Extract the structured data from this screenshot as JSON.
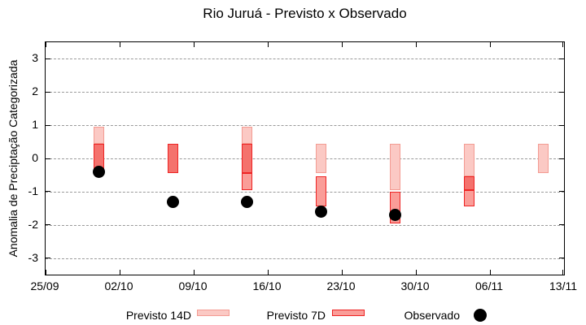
{
  "title": "Rio Juruá - Previsto x Observado",
  "y_axis": {
    "label": "Anomalia de Preciptação Categorizada",
    "tick_labels": [
      "3",
      "2",
      "1",
      "0",
      "-1",
      "-2",
      "-3"
    ],
    "tick_values": [
      3,
      2,
      1,
      0,
      -1,
      -2,
      -3
    ],
    "range": [
      -3.5,
      3.5
    ],
    "grid": "horizontal dashed"
  },
  "x_axis": {
    "tick_labels": [
      "25/09",
      "02/10",
      "09/10",
      "16/10",
      "23/10",
      "30/10",
      "06/11",
      "13/11"
    ]
  },
  "legend": {
    "position": "bottom",
    "items": [
      {
        "label": "Previsto 14D",
        "swatch": "light-pink-box"
      },
      {
        "label": "Previsto 7D",
        "swatch": "red-box"
      },
      {
        "label": "Observado",
        "swatch": "black-dot"
      }
    ]
  },
  "colors": {
    "previsto_14d_fill": "#fbc9c4",
    "previsto_14d_border": "#f39c93",
    "previsto_7d_fill": "#fa9d98",
    "previsto_7d_border": "#ee2424",
    "overlap_fill": "#f4726d",
    "observado": "#000000",
    "grid": "#9a9a9a",
    "axis": "#000000"
  },
  "chart_data": {
    "type": "range-bar+scatter",
    "title": "Rio Juruá - Previsto x Observado",
    "xlabel": "",
    "ylabel": "Anomalia de Preciptação Categorizada",
    "ylim": [
      -3.5,
      3.5
    ],
    "x_tick_dates": [
      "25/09",
      "02/10",
      "09/10",
      "16/10",
      "23/10",
      "30/10",
      "06/11",
      "13/11"
    ],
    "bar_dates": [
      "30/09",
      "07/10",
      "14/10",
      "21/10",
      "28/10",
      "04/11",
      "11/11"
    ],
    "series": [
      {
        "name": "Previsto 14D",
        "type": "range",
        "ranges": [
          {
            "date": "30/09",
            "hi": 0.95,
            "lo": -0.45
          },
          {
            "date": "07/10",
            "hi": 0.45,
            "lo": -0.45
          },
          {
            "date": "14/10",
            "hi": 0.95,
            "lo": -0.45
          },
          {
            "date": "21/10",
            "hi": 0.45,
            "lo": -0.45
          },
          {
            "date": "28/10",
            "hi": 0.45,
            "lo": -0.95
          },
          {
            "date": "04/11",
            "hi": 0.45,
            "lo": -0.95
          },
          {
            "date": "11/11",
            "hi": 0.45,
            "lo": -0.45
          }
        ]
      },
      {
        "name": "Previsto 7D",
        "type": "range",
        "ranges": [
          {
            "date": "30/09",
            "hi": 0.45,
            "lo": -0.45
          },
          {
            "date": "07/10",
            "hi": 0.45,
            "lo": -0.45
          },
          {
            "date": "14/10",
            "hi": 0.45,
            "lo": -0.95
          },
          {
            "date": "21/10",
            "hi": -0.55,
            "lo": -1.45
          },
          {
            "date": "28/10",
            "hi": -1.0,
            "lo": -1.95
          },
          {
            "date": "04/11",
            "hi": -0.55,
            "lo": -1.45
          }
        ]
      },
      {
        "name": "Observado",
        "type": "scatter",
        "points": [
          {
            "date": "30/09",
            "value": -0.4
          },
          {
            "date": "07/10",
            "value": -1.3
          },
          {
            "date": "14/10",
            "value": -1.3
          },
          {
            "date": "21/10",
            "value": -1.6
          },
          {
            "date": "28/10",
            "value": -1.7
          }
        ]
      }
    ]
  }
}
